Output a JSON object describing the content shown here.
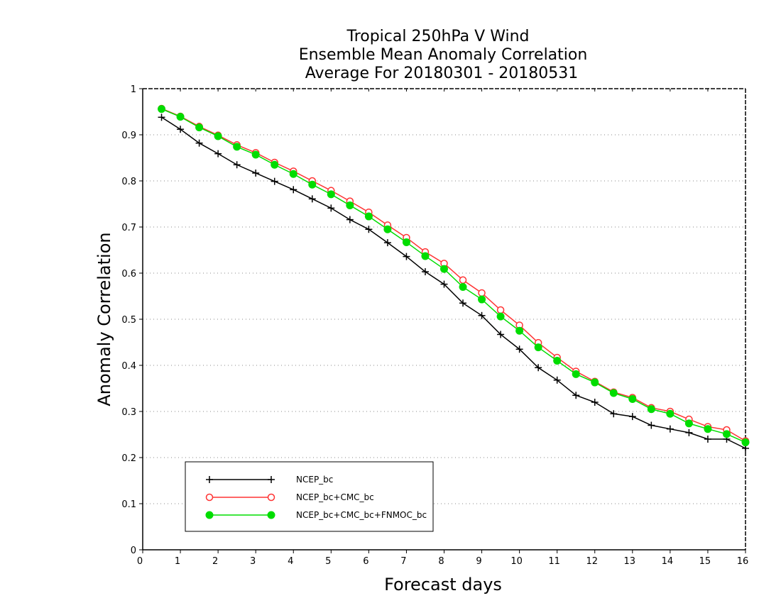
{
  "chart_data": {
    "type": "line",
    "title_lines": [
      "Tropical 250hPa V Wind",
      "Ensemble Mean Anomaly Correlation",
      "Average For 20180301 - 20180531"
    ],
    "xlabel": "Forecast days",
    "ylabel": "Anomaly Correlation",
    "xlim": [
      0,
      16
    ],
    "ylim": [
      0,
      1
    ],
    "x_ticks": [
      "0",
      "1",
      "2",
      "3",
      "4",
      "5",
      "6",
      "7",
      "8",
      "9",
      "10",
      "11",
      "12",
      "13",
      "14",
      "15",
      "16"
    ],
    "y_ticks": [
      "0",
      "0.1",
      "0.2",
      "0.3",
      "0.4",
      "0.5",
      "0.6",
      "0.7",
      "0.8",
      "0.9",
      "1"
    ],
    "grid": "horizontal-dotted",
    "legend_position": "bottom-left",
    "x": [
      0.5,
      1,
      1.5,
      2,
      2.5,
      3,
      3.5,
      4,
      4.5,
      5,
      5.5,
      6,
      6.5,
      7,
      7.5,
      8,
      8.5,
      9,
      9.5,
      10,
      10.5,
      11,
      11.5,
      12,
      12.5,
      13,
      13.5,
      14,
      14.5,
      15,
      15.5,
      16
    ],
    "series": [
      {
        "name": "NCEP_bc",
        "color": "#000000",
        "marker": "plus",
        "values": [
          0.938,
          0.912,
          0.882,
          0.859,
          0.835,
          0.817,
          0.799,
          0.781,
          0.761,
          0.741,
          0.716,
          0.695,
          0.666,
          0.636,
          0.603,
          0.576,
          0.535,
          0.508,
          0.467,
          0.435,
          0.395,
          0.368,
          0.335,
          0.32,
          0.295,
          0.289,
          0.27,
          0.262,
          0.254,
          0.24,
          0.24,
          0.22
        ]
      },
      {
        "name": "NCEP_bc+CMC_bc",
        "color": "#ff3333",
        "marker": "open-circle",
        "values": [
          0.957,
          0.94,
          0.918,
          0.899,
          0.878,
          0.861,
          0.84,
          0.821,
          0.8,
          0.779,
          0.756,
          0.732,
          0.704,
          0.677,
          0.646,
          0.621,
          0.585,
          0.557,
          0.52,
          0.487,
          0.449,
          0.417,
          0.387,
          0.365,
          0.342,
          0.33,
          0.308,
          0.3,
          0.283,
          0.267,
          0.26,
          0.236
        ]
      },
      {
        "name": "NCEP_bc+CMC_bc+FNMOC_bc",
        "color": "#00dd00",
        "marker": "filled-circle",
        "values": [
          0.956,
          0.939,
          0.916,
          0.897,
          0.874,
          0.857,
          0.835,
          0.815,
          0.792,
          0.771,
          0.747,
          0.723,
          0.695,
          0.667,
          0.637,
          0.609,
          0.57,
          0.543,
          0.506,
          0.475,
          0.439,
          0.41,
          0.381,
          0.363,
          0.34,
          0.327,
          0.305,
          0.295,
          0.274,
          0.262,
          0.251,
          0.233
        ]
      }
    ]
  }
}
